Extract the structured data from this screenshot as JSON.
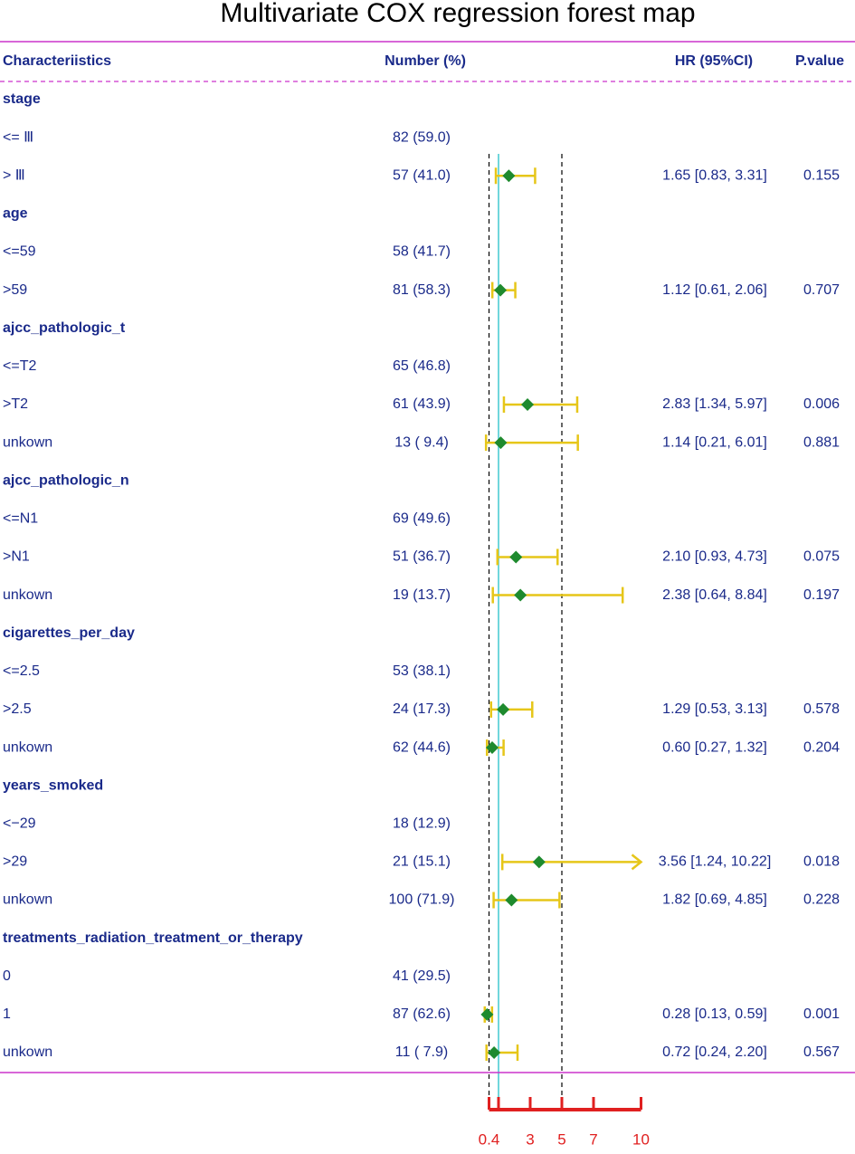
{
  "chart_data": {
    "type": "forest",
    "title": "Multivariate COX regression forest map",
    "columns": [
      "Characteriistics",
      "Number (%)",
      "HR (95%CI)",
      "P.value"
    ],
    "groups": [
      {
        "name": "stage",
        "rows": [
          {
            "label": "<= Ⅲ",
            "number": "82 (59.0)"
          },
          {
            "label": "> Ⅲ",
            "number": "57 (41.0)",
            "hr": 1.65,
            "lower": 0.83,
            "upper": 3.31,
            "hr_label": "1.65 [0.83, 3.31]",
            "p": 0.155
          }
        ]
      },
      {
        "name": "age",
        "rows": [
          {
            "label": "<=59",
            "number": "58 (41.7)"
          },
          {
            "label": ">59",
            "number": "81 (58.3)",
            "hr": 1.12,
            "lower": 0.61,
            "upper": 2.06,
            "hr_label": "1.12 [0.61, 2.06]",
            "p": 0.707
          }
        ]
      },
      {
        "name": "ajcc_pathologic_t",
        "rows": [
          {
            "label": "<=T2",
            "number": "65 (46.8)"
          },
          {
            "label": ">T2",
            "number": "61 (43.9)",
            "hr": 2.83,
            "lower": 1.34,
            "upper": 5.97,
            "hr_label": "2.83 [1.34, 5.97]",
            "p": 0.006
          },
          {
            "label": "unkown",
            "number": "13 ( 9.4)",
            "hr": 1.14,
            "lower": 0.21,
            "upper": 6.01,
            "hr_label": "1.14 [0.21, 6.01]",
            "p": 0.881
          }
        ]
      },
      {
        "name": "ajcc_pathologic_n",
        "rows": [
          {
            "label": "<=N1",
            "number": "69 (49.6)"
          },
          {
            "label": ">N1",
            "number": "51 (36.7)",
            "hr": 2.1,
            "lower": 0.93,
            "upper": 4.73,
            "hr_label": "2.10 [0.93, 4.73]",
            "p": 0.075
          },
          {
            "label": "unkown",
            "number": "19 (13.7)",
            "hr": 2.38,
            "lower": 0.64,
            "upper": 8.84,
            "hr_label": "2.38 [0.64, 8.84]",
            "p": 0.197
          }
        ]
      },
      {
        "name": "cigarettes_per_day",
        "rows": [
          {
            "label": "<=2.5",
            "number": "53 (38.1)"
          },
          {
            "label": ">2.5",
            "number": "24 (17.3)",
            "hr": 1.29,
            "lower": 0.53,
            "upper": 3.13,
            "hr_label": "1.29 [0.53, 3.13]",
            "p": 0.578
          },
          {
            "label": "unkown",
            "number": "62 (44.6)",
            "hr": 0.6,
            "lower": 0.27,
            "upper": 1.32,
            "hr_label": "0.60 [0.27, 1.32]",
            "p": 0.204
          }
        ]
      },
      {
        "name": "years_smoked",
        "rows": [
          {
            "label": "<−29",
            "number": "18 (12.9)"
          },
          {
            "label": ">29",
            "number": "21 (15.1)",
            "hr": 3.56,
            "lower": 1.24,
            "upper": 10.22,
            "hr_label": "3.56 [1.24, 10.22]",
            "p": 0.018
          },
          {
            "label": "unkown",
            "number": "100 (71.9)",
            "hr": 1.82,
            "lower": 0.69,
            "upper": 4.85,
            "hr_label": "1.82 [0.69, 4.85]",
            "p": 0.228
          }
        ]
      },
      {
        "name": "treatments_radiation_treatment_or_therapy",
        "rows": [
          {
            "label": "0",
            "number": "41 (29.5)"
          },
          {
            "label": "1",
            "number": "87 (62.6)",
            "hr": 0.28,
            "lower": 0.13,
            "upper": 0.59,
            "hr_label": "0.28 [0.13, 0.59]",
            "p": 0.001
          },
          {
            "label": "unkown",
            "number": "11 ( 7.9)",
            "hr": 0.72,
            "lower": 0.24,
            "upper": 2.2,
            "hr_label": "0.72 [0.24, 2.20]",
            "p": 0.567
          }
        ]
      }
    ],
    "xlim": [
      0.4,
      10
    ],
    "xticks": [
      0.4,
      3,
      5,
      7,
      10
    ],
    "reference": 1,
    "dashed_lines": [
      0.4,
      5
    ],
    "diamond_color": "#1e8a2e",
    "ci_color": "#e6c619",
    "reference_color": "#40c8d0",
    "axis_color": "#e02020"
  }
}
